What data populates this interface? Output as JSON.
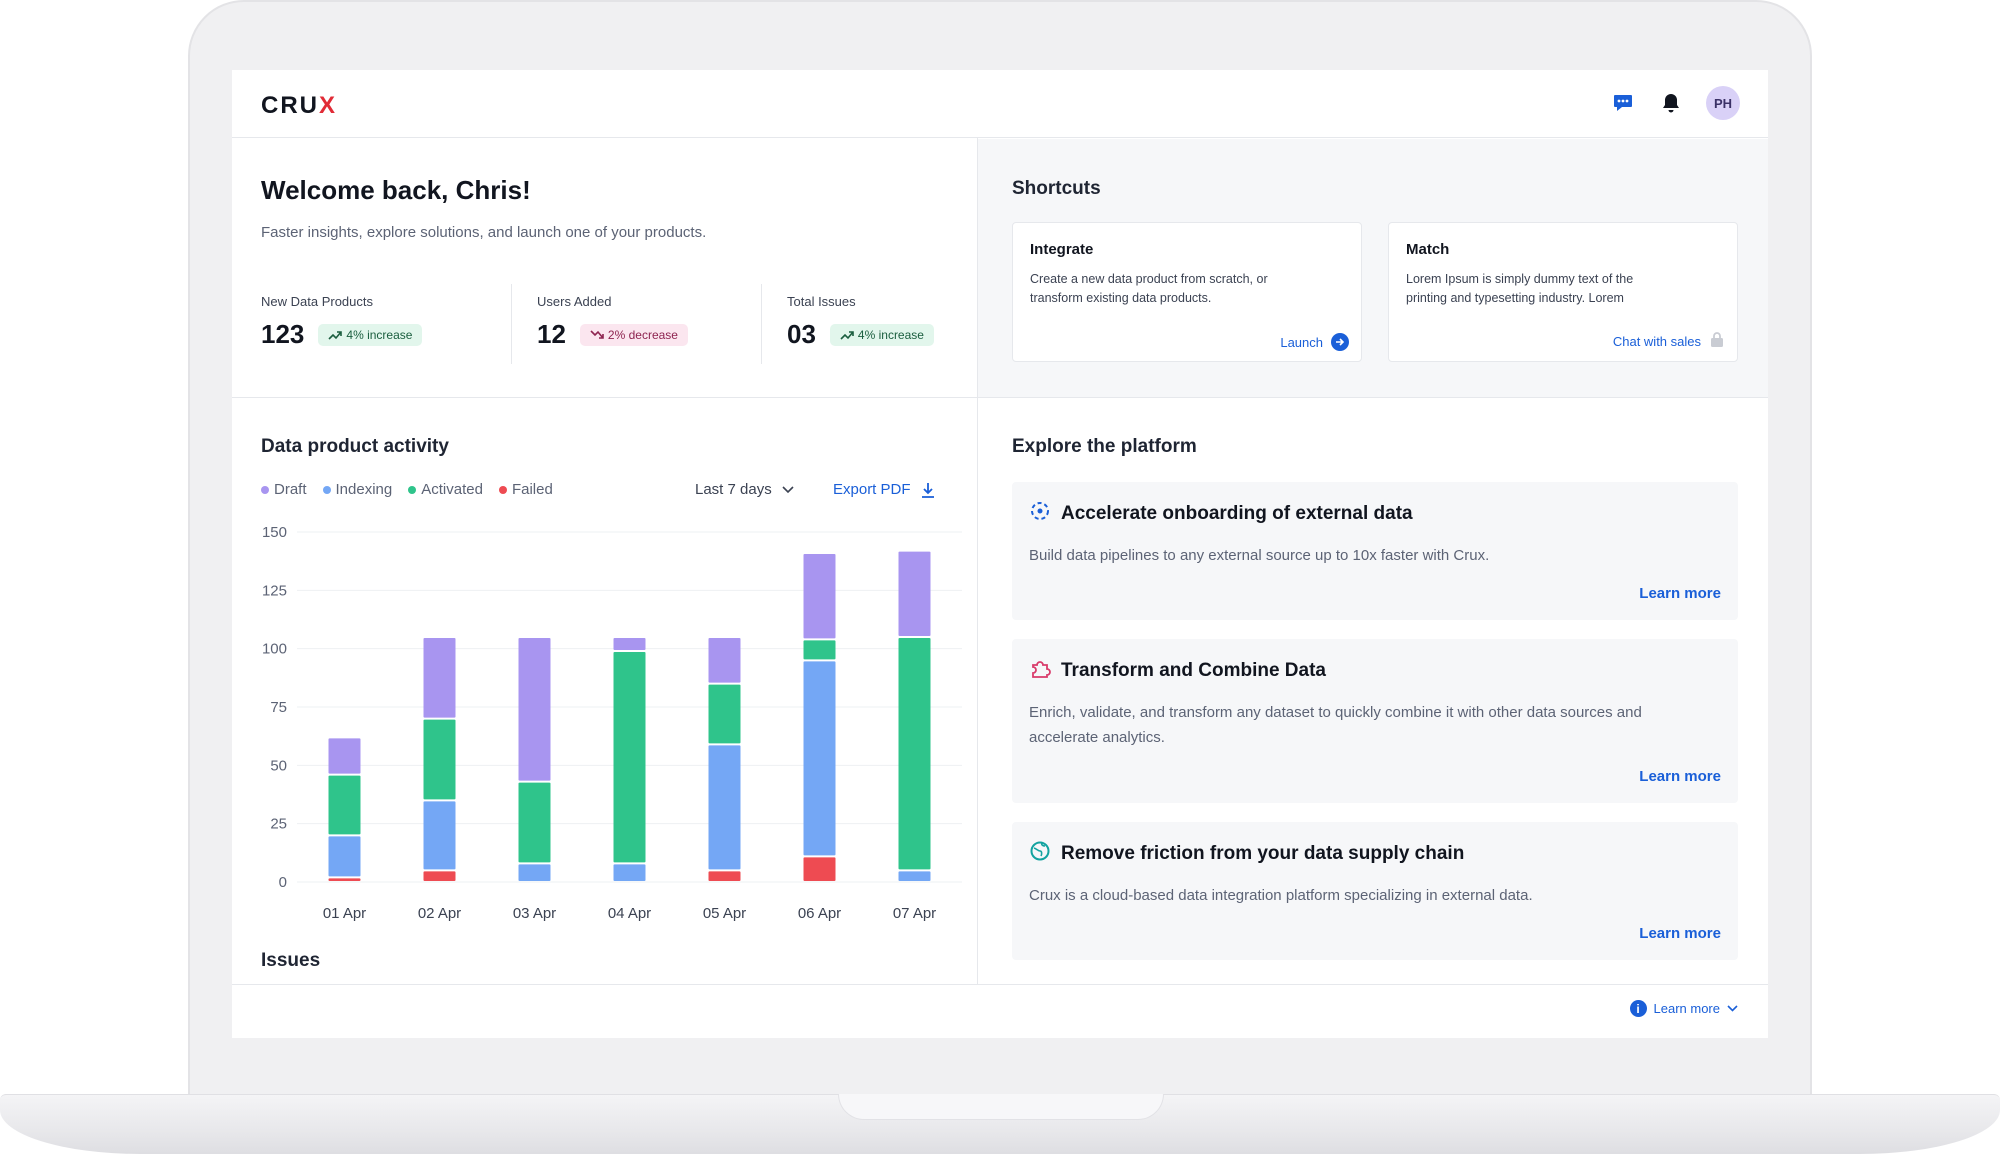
{
  "app": {
    "logo_main": "CRU",
    "logo_x": "X",
    "avatar_initials": "PH",
    "accent_color": "#1a5fd8",
    "icons": [
      "chat-icon",
      "bell-icon"
    ]
  },
  "welcome": {
    "title": "Welcome back, Chris!",
    "subtitle": "Faster insights, explore solutions, and launch one of your products."
  },
  "stats": [
    {
      "label": "New Data Products",
      "value": "123",
      "change": "4% increase",
      "trend": "up"
    },
    {
      "label": "Users Added",
      "value": "12",
      "change": "2% decrease",
      "trend": "down"
    },
    {
      "label": "Total Issues",
      "value": "03",
      "change": "4% increase",
      "trend": "up"
    }
  ],
  "shortcuts": {
    "title": "Shortcuts",
    "cards": [
      {
        "title": "Integrate",
        "description": "Create a new data product from scratch, or transform existing data products.",
        "action": "Launch",
        "icon": "arrow-circle-icon"
      },
      {
        "title": "Match",
        "description": "Lorem Ipsum is simply dummy text of the printing and typesetting industry. Lorem",
        "action": "Chat with sales",
        "icon": "lock-icon"
      }
    ]
  },
  "activity": {
    "title": "Data product activity",
    "range_label": "Last 7 days",
    "export_label": "Export PDF",
    "legend": [
      {
        "name": "Draft",
        "color": "#a895f0"
      },
      {
        "name": "Indexing",
        "color": "#74a7f5"
      },
      {
        "name": "Activated",
        "color": "#2fc48b"
      },
      {
        "name": "Failed",
        "color": "#ee4b52"
      }
    ]
  },
  "chart_data": {
    "type": "bar",
    "stacked": true,
    "categories": [
      "01 Apr",
      "02 Apr",
      "03 Apr",
      "04 Apr",
      "05 Apr",
      "06 Apr",
      "07 Apr"
    ],
    "ylim": [
      0,
      150
    ],
    "yticks": [
      0,
      25,
      50,
      75,
      100,
      125,
      150
    ],
    "grid": true,
    "legend_position": "top-left",
    "series": [
      {
        "name": "Failed",
        "color": "#ee4b52",
        "values": [
          2,
          5,
          0,
          0,
          5,
          11,
          0
        ]
      },
      {
        "name": "Indexing",
        "color": "#74a7f5",
        "values": [
          18,
          30,
          8,
          8,
          54,
          84,
          5
        ]
      },
      {
        "name": "Activated",
        "color": "#2fc48b",
        "values": [
          26,
          35,
          35,
          91,
          26,
          9,
          100
        ]
      },
      {
        "name": "Draft",
        "color": "#a895f0",
        "values": [
          16,
          35,
          62,
          6,
          20,
          37,
          37
        ]
      }
    ]
  },
  "issues": {
    "title": "Issues"
  },
  "explore": {
    "title": "Explore the platform",
    "cards": [
      {
        "title": "Accelerate onboarding of external data",
        "description": "Build data pipelines to any external source up to 10x faster with Crux.",
        "link": "Learn more",
        "icon": "onboarding-icon"
      },
      {
        "title": "Transform and Combine Data",
        "description": "Enrich, validate, and transform any dataset to quickly combine it with other data sources and accelerate analytics.",
        "link": "Learn more",
        "icon": "puzzle-icon"
      },
      {
        "title": "Remove friction from your data supply chain",
        "description": "Crux is a cloud-based data integration platform specializing in external data.",
        "link": "Learn more",
        "icon": "globe-icon"
      }
    ]
  },
  "footer": {
    "link": "Learn more"
  }
}
